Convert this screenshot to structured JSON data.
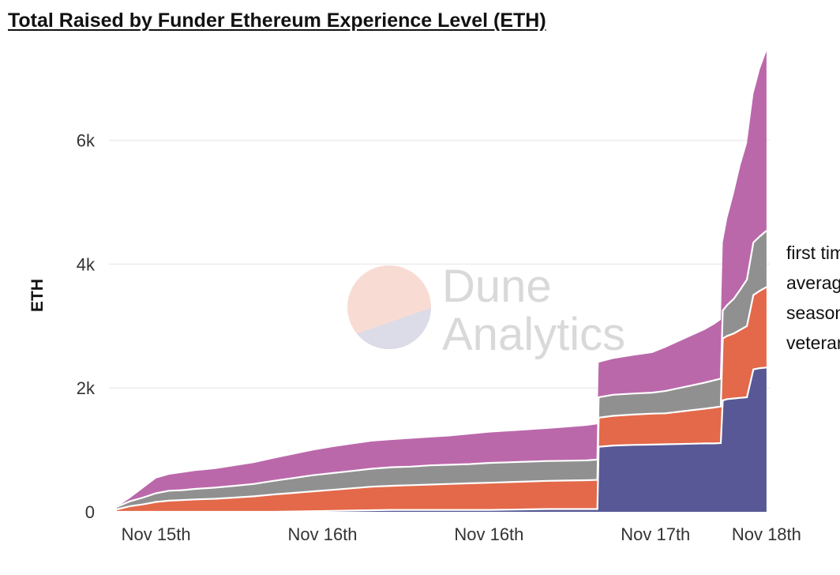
{
  "chart_data": {
    "type": "area",
    "stacked": true,
    "title": "Total Raised by Funder Ethereum Experience Level (ETH)",
    "ylabel": "ETH",
    "ylim": [
      0,
      7500
    ],
    "yticks": [
      0,
      2000,
      4000,
      6000
    ],
    "ytick_labels": [
      "0",
      "2k",
      "4k",
      "6k"
    ],
    "xlim": [
      0,
      100
    ],
    "xticks": [
      {
        "x": 6,
        "label": "Nov 15th"
      },
      {
        "x": 31.5,
        "label": "Nov 16th"
      },
      {
        "x": 57,
        "label": "Nov 16th"
      },
      {
        "x": 82.5,
        "label": "Nov 17th"
      },
      {
        "x": 99.5,
        "label": "Nov 18th"
      }
    ],
    "grid": true,
    "legend_position": "right",
    "watermark": {
      "line1": "Dune",
      "line2": "Analytics"
    },
    "x": [
      0,
      2,
      4,
      6,
      8,
      10,
      12,
      15,
      18,
      21,
      24,
      27,
      30,
      33,
      36,
      39,
      42,
      45,
      48,
      51,
      54,
      57,
      60,
      63,
      66,
      69,
      72,
      73.6,
      73.8,
      76,
      79,
      82,
      84,
      86,
      88,
      90,
      91.5,
      92.5,
      92.8,
      93.5,
      94.5,
      95.5,
      96.5,
      97.5,
      98.5,
      99.5
    ],
    "series": [
      {
        "name": "veteran",
        "color": "#575895",
        "values": [
          0,
          0,
          0,
          0,
          0,
          0,
          0,
          0,
          0,
          0,
          0,
          5,
          10,
          15,
          20,
          25,
          30,
          30,
          30,
          30,
          30,
          30,
          35,
          40,
          45,
          45,
          45,
          45,
          1050,
          1070,
          1080,
          1085,
          1090,
          1095,
          1100,
          1105,
          1105,
          1110,
          1800,
          1820,
          1830,
          1840,
          1850,
          2300,
          2320,
          2330
        ]
      },
      {
        "name": "seasoned",
        "color": "#e3694a",
        "values": [
          40,
          90,
          120,
          160,
          180,
          190,
          200,
          210,
          230,
          250,
          280,
          300,
          320,
          340,
          360,
          380,
          390,
          400,
          410,
          420,
          430,
          440,
          445,
          450,
          455,
          460,
          465,
          470,
          470,
          480,
          490,
          500,
          500,
          520,
          540,
          560,
          580,
          590,
          1000,
          1020,
          1050,
          1100,
          1150,
          1200,
          1250,
          1300
        ]
      },
      {
        "name": "average",
        "color": "#909090",
        "values": [
          40,
          80,
          110,
          140,
          160,
          160,
          170,
          180,
          190,
          200,
          220,
          240,
          260,
          270,
          280,
          290,
          300,
          300,
          310,
          310,
          310,
          320,
          320,
          320,
          320,
          320,
          320,
          330,
          330,
          340,
          340,
          340,
          360,
          380,
          400,
          420,
          440,
          450,
          450,
          500,
          560,
          650,
          750,
          850,
          880,
          910
        ]
      },
      {
        "name": "first time",
        "color": "#bb68ab",
        "values": [
          0,
          50,
          150,
          240,
          260,
          280,
          290,
          300,
          320,
          340,
          360,
          380,
          400,
          420,
          430,
          440,
          440,
          450,
          450,
          460,
          480,
          490,
          500,
          510,
          520,
          540,
          560,
          570,
          560,
          580,
          610,
          640,
          700,
          750,
          800,
          850,
          900,
          950,
          1100,
          1400,
          1700,
          2000,
          2200,
          2400,
          2700,
          2900
        ]
      }
    ]
  }
}
